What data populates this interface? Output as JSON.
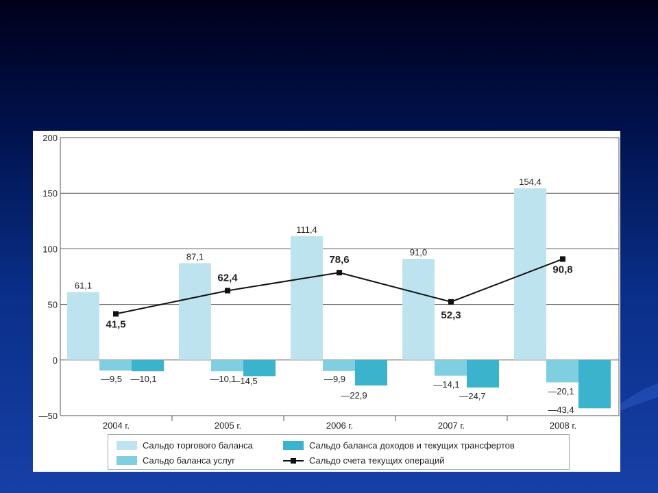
{
  "colors": {
    "trade": "#bde4ee",
    "services": "#7fcfe0",
    "income": "#3bb3cc",
    "current": "#111111",
    "grid": "#555555"
  },
  "legend": {
    "trade": "Сальдо торгового баланса",
    "income": "Сальдо баланса доходов и текущих трансфертов",
    "services": "Сальдо баланса услуг",
    "current": "Сальдо счета текущих операций"
  },
  "chart_data": {
    "type": "bar",
    "categories": [
      "2004 г.",
      "2005 г.",
      "2006 г.",
      "2007 г.",
      "2008 г."
    ],
    "ylim": [
      -50,
      200
    ],
    "yticks": [
      -50,
      0,
      50,
      100,
      150,
      200
    ],
    "ytick_labels": [
      "—50",
      "0",
      "50",
      "100",
      "150",
      "200"
    ],
    "grid": true,
    "legend_position": "bottom",
    "series": [
      {
        "name": "Сальдо торгового баланса",
        "type": "bar",
        "values": [
          61.1,
          87.1,
          111.4,
          91.0,
          154.4
        ],
        "labels": [
          "61,1",
          "87,1",
          "111,4",
          "91,0",
          "154,4"
        ]
      },
      {
        "name": "Сальдо баланса услуг",
        "type": "bar",
        "values": [
          -9.5,
          -10.1,
          -9.9,
          -14.1,
          -20.1
        ],
        "labels": [
          "—9,5",
          "—10,1",
          "—9,9",
          "—14,1",
          "—20,1"
        ]
      },
      {
        "name": "Сальдо баланса доходов и текущих трансфертов",
        "type": "bar",
        "values": [
          -10.1,
          -14.5,
          -22.9,
          -24.7,
          -43.4
        ],
        "labels": [
          "—10,1",
          "—14,5",
          "—22,9",
          "—24,7",
          "—43,4"
        ]
      },
      {
        "name": "Сальдо счета текущих операций",
        "type": "line",
        "values": [
          41.5,
          62.4,
          78.6,
          52.3,
          90.8
        ],
        "labels": [
          "41,5",
          "62,4",
          "78,6",
          "52,3",
          "90,8"
        ]
      }
    ]
  }
}
